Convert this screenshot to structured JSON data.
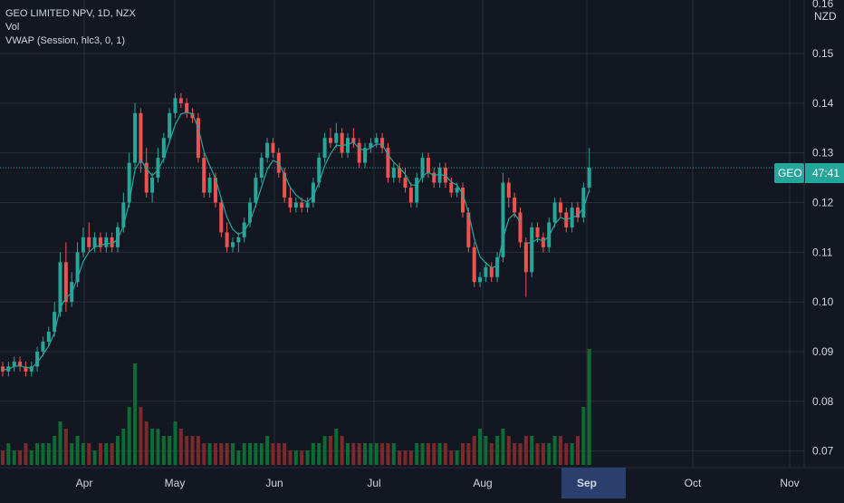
{
  "legend": {
    "symbol_line": "GEO LIMITED NPV, 1D, NZX",
    "vol_label": "Vol",
    "vwap_label": "VWAP (Session, hlc3, 0, 1)"
  },
  "price_axis": {
    "currency": "NZD",
    "top_partial_label": "0.16",
    "tick_labels": [
      "0.15",
      "0.14",
      "0.13",
      "0.12",
      "0.11",
      "0.10",
      "0.09",
      "0.08",
      "0.07"
    ]
  },
  "time_axis": {
    "month_labels": [
      "Apr",
      "May",
      "Jun",
      "Jul",
      "Aug",
      "Sep",
      "Oct",
      "Nov"
    ],
    "highlighted_label": "Sep"
  },
  "price_tag": {
    "symbol": "GEO",
    "countdown": "47:41"
  },
  "colors": {
    "background": "#131722",
    "grid": "#2a2e39",
    "up": "#26a69a",
    "down": "#ef5350",
    "vwap": "#26a69a",
    "tag_bg": "#26a69a",
    "sep_highlight": "#2a3f6e",
    "text": "#d1d4dc"
  },
  "chart_data": {
    "type": "candlestick",
    "ylim": [
      0.065,
      0.16
    ],
    "yticks": [
      0.07,
      0.08,
      0.09,
      0.1,
      0.11,
      0.12,
      0.13,
      0.14,
      0.15
    ],
    "ohlc": [
      [
        0.087,
        0.088,
        0.085,
        0.086
      ],
      [
        0.086,
        0.088,
        0.085,
        0.087
      ],
      [
        0.087,
        0.089,
        0.086,
        0.088
      ],
      [
        0.088,
        0.089,
        0.086,
        0.087
      ],
      [
        0.087,
        0.088,
        0.085,
        0.086
      ],
      [
        0.086,
        0.088,
        0.085,
        0.087
      ],
      [
        0.087,
        0.091,
        0.086,
        0.09
      ],
      [
        0.09,
        0.093,
        0.089,
        0.092
      ],
      [
        0.092,
        0.095,
        0.091,
        0.094
      ],
      [
        0.094,
        0.1,
        0.093,
        0.098
      ],
      [
        0.098,
        0.11,
        0.097,
        0.108
      ],
      [
        0.108,
        0.112,
        0.098,
        0.1
      ],
      [
        0.1,
        0.106,
        0.099,
        0.104
      ],
      [
        0.104,
        0.112,
        0.103,
        0.11
      ],
      [
        0.11,
        0.115,
        0.109,
        0.113
      ],
      [
        0.113,
        0.116,
        0.11,
        0.111
      ],
      [
        0.111,
        0.114,
        0.11,
        0.113
      ],
      [
        0.113,
        0.114,
        0.11,
        0.111
      ],
      [
        0.111,
        0.114,
        0.11,
        0.113
      ],
      [
        0.113,
        0.114,
        0.11,
        0.111
      ],
      [
        0.111,
        0.116,
        0.11,
        0.115
      ],
      [
        0.115,
        0.122,
        0.114,
        0.12
      ],
      [
        0.12,
        0.13,
        0.119,
        0.128
      ],
      [
        0.128,
        0.14,
        0.126,
        0.138
      ],
      [
        0.138,
        0.139,
        0.126,
        0.128
      ],
      [
        0.128,
        0.131,
        0.121,
        0.122
      ],
      [
        0.122,
        0.126,
        0.12,
        0.125
      ],
      [
        0.125,
        0.131,
        0.124,
        0.129
      ],
      [
        0.129,
        0.134,
        0.128,
        0.133
      ],
      [
        0.133,
        0.139,
        0.132,
        0.138
      ],
      [
        0.138,
        0.142,
        0.137,
        0.141
      ],
      [
        0.141,
        0.142,
        0.139,
        0.14
      ],
      [
        0.14,
        0.141,
        0.137,
        0.138
      ],
      [
        0.138,
        0.139,
        0.136,
        0.137
      ],
      [
        0.137,
        0.138,
        0.128,
        0.129
      ],
      [
        0.129,
        0.13,
        0.121,
        0.122
      ],
      [
        0.122,
        0.126,
        0.121,
        0.125
      ],
      [
        0.125,
        0.126,
        0.119,
        0.12
      ],
      [
        0.12,
        0.121,
        0.113,
        0.114
      ],
      [
        0.114,
        0.116,
        0.11,
        0.111
      ],
      [
        0.111,
        0.113,
        0.11,
        0.112
      ],
      [
        0.112,
        0.114,
        0.11,
        0.113
      ],
      [
        0.113,
        0.117,
        0.112,
        0.116
      ],
      [
        0.116,
        0.121,
        0.115,
        0.12
      ],
      [
        0.12,
        0.126,
        0.119,
        0.125
      ],
      [
        0.125,
        0.13,
        0.124,
        0.129
      ],
      [
        0.129,
        0.133,
        0.128,
        0.132
      ],
      [
        0.132,
        0.133,
        0.129,
        0.13
      ],
      [
        0.13,
        0.131,
        0.125,
        0.126
      ],
      [
        0.126,
        0.127,
        0.12,
        0.121
      ],
      [
        0.121,
        0.123,
        0.118,
        0.119
      ],
      [
        0.119,
        0.121,
        0.118,
        0.12
      ],
      [
        0.12,
        0.121,
        0.118,
        0.119
      ],
      [
        0.119,
        0.121,
        0.118,
        0.12
      ],
      [
        0.12,
        0.125,
        0.119,
        0.124
      ],
      [
        0.124,
        0.13,
        0.123,
        0.129
      ],
      [
        0.129,
        0.134,
        0.128,
        0.133
      ],
      [
        0.133,
        0.135,
        0.131,
        0.132
      ],
      [
        0.132,
        0.136,
        0.131,
        0.134
      ],
      [
        0.134,
        0.135,
        0.129,
        0.13
      ],
      [
        0.13,
        0.134,
        0.129,
        0.133
      ],
      [
        0.133,
        0.135,
        0.131,
        0.132
      ],
      [
        0.132,
        0.133,
        0.127,
        0.128
      ],
      [
        0.128,
        0.132,
        0.127,
        0.131
      ],
      [
        0.131,
        0.133,
        0.13,
        0.132
      ],
      [
        0.132,
        0.134,
        0.131,
        0.133
      ],
      [
        0.133,
        0.134,
        0.13,
        0.131
      ],
      [
        0.131,
        0.132,
        0.124,
        0.125
      ],
      [
        0.125,
        0.128,
        0.124,
        0.127
      ],
      [
        0.127,
        0.128,
        0.124,
        0.125
      ],
      [
        0.125,
        0.127,
        0.122,
        0.123
      ],
      [
        0.123,
        0.124,
        0.119,
        0.12
      ],
      [
        0.12,
        0.126,
        0.119,
        0.125
      ],
      [
        0.125,
        0.13,
        0.124,
        0.129
      ],
      [
        0.129,
        0.13,
        0.125,
        0.126
      ],
      [
        0.126,
        0.127,
        0.123,
        0.124
      ],
      [
        0.124,
        0.128,
        0.123,
        0.127
      ],
      [
        0.127,
        0.128,
        0.123,
        0.124
      ],
      [
        0.124,
        0.125,
        0.121,
        0.122
      ],
      [
        0.122,
        0.124,
        0.121,
        0.123
      ],
      [
        0.123,
        0.124,
        0.117,
        0.118
      ],
      [
        0.118,
        0.119,
        0.11,
        0.111
      ],
      [
        0.111,
        0.112,
        0.103,
        0.104
      ],
      [
        0.104,
        0.106,
        0.103,
        0.105
      ],
      [
        0.105,
        0.108,
        0.104,
        0.107
      ],
      [
        0.107,
        0.108,
        0.104,
        0.105
      ],
      [
        0.105,
        0.11,
        0.104,
        0.109
      ],
      [
        0.109,
        0.126,
        0.108,
        0.124
      ],
      [
        0.124,
        0.125,
        0.119,
        0.121
      ],
      [
        0.121,
        0.122,
        0.117,
        0.118
      ],
      [
        0.118,
        0.119,
        0.111,
        0.112
      ],
      [
        0.112,
        0.113,
        0.101,
        0.106
      ],
      [
        0.106,
        0.116,
        0.105,
        0.115
      ],
      [
        0.115,
        0.116,
        0.112,
        0.113
      ],
      [
        0.113,
        0.114,
        0.11,
        0.111
      ],
      [
        0.111,
        0.117,
        0.11,
        0.116
      ],
      [
        0.116,
        0.121,
        0.115,
        0.12
      ],
      [
        0.12,
        0.121,
        0.117,
        0.118
      ],
      [
        0.118,
        0.119,
        0.114,
        0.115
      ],
      [
        0.115,
        0.12,
        0.114,
        0.119
      ],
      [
        0.119,
        0.12,
        0.116,
        0.117
      ],
      [
        0.117,
        0.124,
        0.116,
        0.123
      ],
      [
        0.123,
        0.131,
        0.122,
        0.127
      ]
    ],
    "volume": [
      2,
      3,
      2,
      2,
      3,
      2,
      3,
      3,
      3,
      4,
      6,
      5,
      3,
      4,
      3,
      3,
      2,
      3,
      3,
      3,
      4,
      5,
      8,
      14,
      8,
      6,
      5,
      5,
      4,
      4,
      6,
      5,
      4,
      4,
      4,
      3,
      3,
      3,
      3,
      3,
      3,
      2,
      3,
      3,
      3,
      3,
      4,
      3,
      3,
      3,
      2,
      2,
      2,
      2,
      3,
      3,
      4,
      4,
      5,
      4,
      3,
      3,
      3,
      3,
      3,
      3,
      3,
      3,
      3,
      2,
      2,
      2,
      3,
      3,
      3,
      3,
      3,
      3,
      2,
      2,
      3,
      3,
      4,
      5,
      4,
      3,
      4,
      5,
      4,
      3,
      3,
      4,
      4,
      3,
      3,
      3,
      4,
      4,
      3,
      3,
      4,
      8,
      16
    ],
    "vwap_gaps_after": [
      90
    ]
  }
}
